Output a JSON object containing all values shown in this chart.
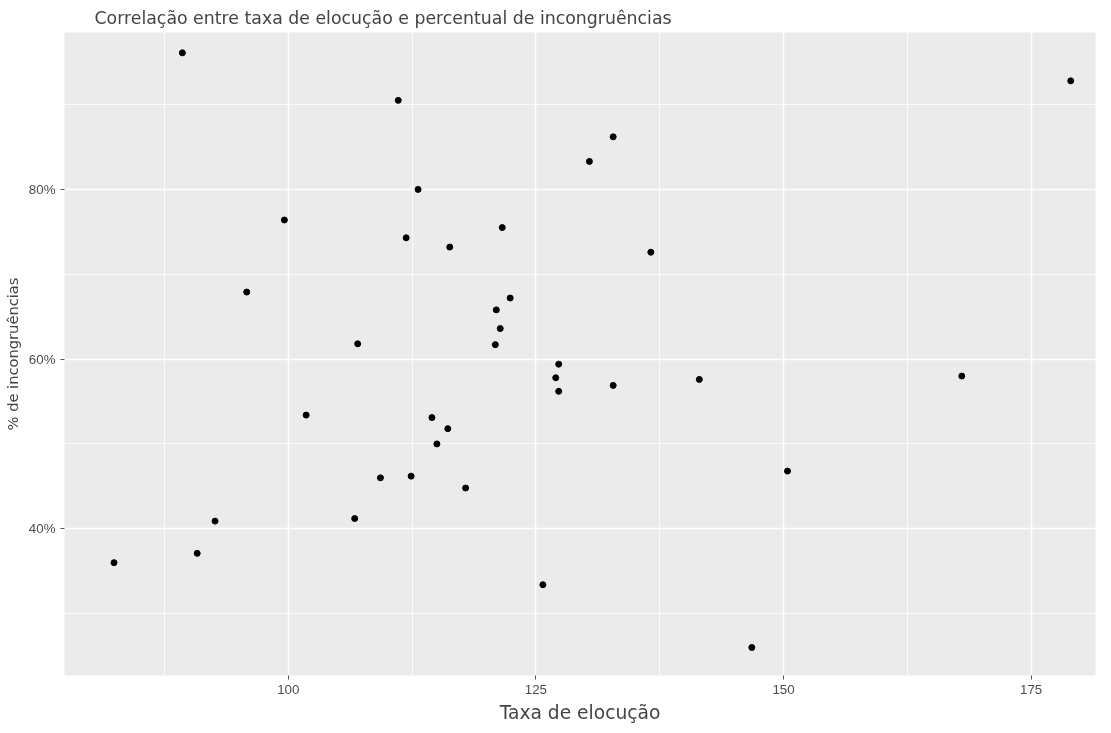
{
  "chart_data": {
    "type": "scatter",
    "title": "Correlação entre taxa de elocução e percentual de incongruências",
    "xlabel": "Taxa de elocução",
    "ylabel": "% de incongruências",
    "x": [
      89.3,
      111.1,
      113.1,
      99.6,
      111.9,
      116.3,
      121.6,
      95.8,
      122.4,
      121.0,
      121.4,
      107.0,
      120.9,
      127.3,
      127.0,
      127.3,
      179.0,
      132.8,
      130.4,
      136.6,
      168.0,
      141.5,
      132.8,
      101.8,
      114.5,
      116.1,
      115.0,
      109.3,
      112.4,
      117.9,
      106.7,
      92.6,
      90.8,
      82.4,
      125.7,
      150.4,
      146.8
    ],
    "series": [
      {
        "color": "#000000",
        "values": [
          96.1,
          90.5,
          80.0,
          76.4,
          74.3,
          73.2,
          75.5,
          67.9,
          67.2,
          65.8,
          63.6,
          61.8,
          61.7,
          59.4,
          57.8,
          56.2,
          92.8,
          86.2,
          83.3,
          72.6,
          58.0,
          57.6,
          56.9,
          53.4,
          53.1,
          51.8,
          50.0,
          46.0,
          46.2,
          44.8,
          41.2,
          40.9,
          37.1,
          36.0,
          33.4,
          46.8,
          26.0
        ]
      }
    ],
    "xlim": [
      77.4,
      181.5
    ],
    "ylim": [
      22.7,
      98.5
    ],
    "xticks": [
      100,
      125,
      150,
      175
    ],
    "yticks": [
      {
        "value": 40,
        "label": "40%"
      },
      {
        "value": 60,
        "label": "60%"
      },
      {
        "value": 80,
        "label": "80%"
      }
    ],
    "grid": true,
    "marker": "circle"
  }
}
